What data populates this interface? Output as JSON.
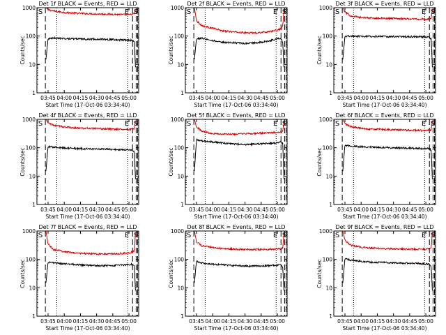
{
  "window": {
    "title": ""
  },
  "layout": {
    "rows": 3,
    "cols": 3
  },
  "colors": {
    "events": "#000000",
    "lld": "#d40000",
    "axes": "#000000",
    "background": "#ffffff"
  },
  "chart_data": [
    {
      "type": "line",
      "title": "Det 1f BLACK = Events, RED = LLD",
      "xlabel": "Start Time (17-Oct-06 03:34:40)",
      "ylabel": "Counts/sec",
      "yscale": "log",
      "ylim": [
        1,
        1000
      ],
      "xlim": [
        "03:34:40",
        "05:09:00"
      ],
      "x_ticks": [
        "03:45",
        "04:00",
        "04:15",
        "04:30",
        "04:45",
        "05:00"
      ],
      "y_ticks": [
        "1",
        "10",
        "100",
        "1000"
      ],
      "annotations": [
        "S",
        "E",
        "S"
      ],
      "dashed_lines": [
        "03:42:30",
        "05:03:20",
        "05:06:40",
        "05:08:00"
      ],
      "dotted_lines": [
        "03:53:00",
        "04:58:50"
      ],
      "series": [
        {
          "name": "LLD",
          "color": "#d40000",
          "x": [
            "03:43:00",
            "03:45:00",
            "03:50:00",
            "04:00:00",
            "04:10:00",
            "04:20:00",
            "04:30:00",
            "04:40:00",
            "04:50:00",
            "05:00:00",
            "05:03:00",
            "05:05:00",
            "05:06:00"
          ],
          "y": [
            1000,
            850,
            760,
            680,
            640,
            620,
            600,
            590,
            580,
            560,
            590,
            620,
            900
          ]
        },
        {
          "name": "Events",
          "color": "#000000",
          "x": [
            "03:43:00",
            "03:45:00",
            "03:50:00",
            "04:00:00",
            "04:10:00",
            "04:20:00",
            "04:30:00",
            "04:40:00",
            "04:50:00",
            "05:00:00",
            "05:03:00",
            "05:05:00",
            "05:06:00"
          ],
          "y": [
            15,
            80,
            85,
            82,
            80,
            78,
            78,
            76,
            74,
            72,
            72,
            60,
            8
          ]
        }
      ]
    },
    {
      "type": "line",
      "title": "Det 2f BLACK = Events, RED = LLD",
      "xlabel": "Start Time (17-Oct-06 03:34:40)",
      "ylabel": "Counts/sec",
      "yscale": "log",
      "ylim": [
        1,
        1000
      ],
      "xlim": [
        "03:34:40",
        "05:09:00"
      ],
      "x_ticks": [
        "03:45",
        "04:00",
        "04:15",
        "04:30",
        "04:45",
        "05:00"
      ],
      "y_ticks": [
        "1",
        "10",
        "100",
        "1000"
      ],
      "annotations": [
        "S",
        "E",
        "S"
      ],
      "dashed_lines": [
        "03:42:30",
        "05:03:20",
        "05:06:40",
        "05:08:00"
      ],
      "dotted_lines": [
        "03:53:00",
        "04:58:50"
      ],
      "series": [
        {
          "name": "LLD",
          "color": "#d40000",
          "x": [
            "03:43:00",
            "03:45:00",
            "03:50:00",
            "04:00:00",
            "04:10:00",
            "04:20:00",
            "04:30:00",
            "04:40:00",
            "04:50:00",
            "05:00:00",
            "05:03:00",
            "05:05:00",
            "05:06:00"
          ],
          "y": [
            1000,
            350,
            230,
            190,
            150,
            140,
            130,
            130,
            140,
            160,
            180,
            220,
            900
          ]
        },
        {
          "name": "Events",
          "color": "#000000",
          "x": [
            "03:43:00",
            "03:45:00",
            "03:50:00",
            "04:00:00",
            "04:10:00",
            "04:20:00",
            "04:30:00",
            "04:40:00",
            "04:50:00",
            "05:00:00",
            "05:03:00",
            "05:05:00",
            "05:06:00"
          ],
          "y": [
            15,
            80,
            85,
            70,
            60,
            58,
            55,
            58,
            65,
            80,
            85,
            60,
            8
          ]
        }
      ]
    },
    {
      "type": "line",
      "title": "Det 3f BLACK = Events, RED = LLD",
      "xlabel": "Start Time (17-Oct-06 03:34:40)",
      "ylabel": "Counts/sec",
      "yscale": "log",
      "ylim": [
        1,
        1000
      ],
      "xlim": [
        "03:34:40",
        "05:09:00"
      ],
      "x_ticks": [
        "03:45",
        "04:00",
        "04:15",
        "04:30",
        "04:45",
        "05:00"
      ],
      "y_ticks": [
        "1",
        "10",
        "100",
        "1000"
      ],
      "annotations": [
        "S",
        "E",
        "S"
      ],
      "dashed_lines": [
        "03:42:30",
        "05:03:20",
        "05:06:40",
        "05:08:00"
      ],
      "dotted_lines": [
        "03:53:00",
        "04:58:50"
      ],
      "series": [
        {
          "name": "LLD",
          "color": "#d40000",
          "x": [
            "03:43:00",
            "03:45:00",
            "03:50:00",
            "04:00:00",
            "04:10:00",
            "04:20:00",
            "04:30:00",
            "04:40:00",
            "04:50:00",
            "05:00:00",
            "05:03:00",
            "05:05:00",
            "05:06:00"
          ],
          "y": [
            1000,
            700,
            520,
            450,
            430,
            420,
            420,
            410,
            400,
            390,
            400,
            420,
            900
          ]
        },
        {
          "name": "Events",
          "color": "#000000",
          "x": [
            "03:43:00",
            "03:45:00",
            "03:50:00",
            "04:00:00",
            "04:10:00",
            "04:20:00",
            "04:30:00",
            "04:40:00",
            "04:50:00",
            "05:00:00",
            "05:03:00",
            "05:05:00",
            "05:06:00"
          ],
          "y": [
            15,
            95,
            100,
            98,
            97,
            96,
            96,
            95,
            95,
            93,
            92,
            80,
            8
          ]
        }
      ]
    },
    {
      "type": "line",
      "title": "Det 4f BLACK = Events, RED = LLD",
      "xlabel": "Start Time (17-Oct-06 03:34:40)",
      "ylabel": "Counts/sec",
      "yscale": "log",
      "ylim": [
        1,
        1000
      ],
      "xlim": [
        "03:34:40",
        "05:09:00"
      ],
      "x_ticks": [
        "03:45",
        "04:00",
        "04:15",
        "04:30",
        "04:45",
        "05:00"
      ],
      "y_ticks": [
        "1",
        "10",
        "100",
        "1000"
      ],
      "annotations": [
        "S",
        "E",
        "S"
      ],
      "dashed_lines": [
        "03:42:30",
        "05:03:20",
        "05:06:40",
        "05:08:00"
      ],
      "dotted_lines": [
        "03:53:00",
        "04:58:50"
      ],
      "series": [
        {
          "name": "LLD",
          "color": "#d40000",
          "x": [
            "03:43:00",
            "03:45:00",
            "03:50:00",
            "04:00:00",
            "04:10:00",
            "04:20:00",
            "04:30:00",
            "04:40:00",
            "04:50:00",
            "05:00:00",
            "05:03:00",
            "05:05:00",
            "05:06:00"
          ],
          "y": [
            1000,
            750,
            620,
            540,
            500,
            480,
            470,
            460,
            450,
            440,
            460,
            480,
            900
          ]
        },
        {
          "name": "Events",
          "color": "#000000",
          "x": [
            "03:43:00",
            "03:45:00",
            "03:50:00",
            "04:00:00",
            "04:10:00",
            "04:20:00",
            "04:30:00",
            "04:40:00",
            "04:50:00",
            "05:00:00",
            "05:03:00",
            "05:05:00",
            "05:06:00"
          ],
          "y": [
            15,
            110,
            105,
            98,
            94,
            92,
            90,
            88,
            86,
            84,
            84,
            70,
            8
          ]
        }
      ]
    },
    {
      "type": "line",
      "title": "Det 5f BLACK = Events, RED = LLD",
      "xlabel": "Start Time (17-Oct-06 03:34:40)",
      "ylabel": "Counts/sec",
      "yscale": "log",
      "ylim": [
        1,
        1000
      ],
      "xlim": [
        "03:34:40",
        "05:09:00"
      ],
      "x_ticks": [
        "03:45",
        "04:00",
        "04:15",
        "04:30",
        "04:45",
        "05:00"
      ],
      "y_ticks": [
        "1",
        "10",
        "100",
        "1000"
      ],
      "annotations": [
        "S",
        "E",
        "S"
      ],
      "dashed_lines": [
        "03:42:30",
        "05:03:20",
        "05:06:40",
        "05:08:00"
      ],
      "dotted_lines": [
        "03:53:00",
        "04:58:50"
      ],
      "series": [
        {
          "name": "LLD",
          "color": "#d40000",
          "x": [
            "03:43:00",
            "03:45:00",
            "03:50:00",
            "04:00:00",
            "04:10:00",
            "04:20:00",
            "04:30:00",
            "04:40:00",
            "04:50:00",
            "05:00:00",
            "05:03:00",
            "05:05:00",
            "05:06:00"
          ],
          "y": [
            1000,
            550,
            380,
            320,
            300,
            300,
            310,
            320,
            330,
            350,
            360,
            380,
            900
          ]
        },
        {
          "name": "Events",
          "color": "#000000",
          "x": [
            "03:43:00",
            "03:45:00",
            "03:50:00",
            "04:00:00",
            "04:10:00",
            "04:20:00",
            "04:30:00",
            "04:40:00",
            "04:50:00",
            "05:00:00",
            "05:03:00",
            "05:05:00",
            "05:06:00"
          ],
          "y": [
            15,
            190,
            175,
            160,
            145,
            135,
            130,
            135,
            140,
            150,
            160,
            140,
            8
          ]
        }
      ]
    },
    {
      "type": "line",
      "title": "Det 6f BLACK = Events, RED = LLD",
      "xlabel": "Start Time (17-Oct-06 03:34:40)",
      "ylabel": "Counts/sec",
      "yscale": "log",
      "ylim": [
        1,
        1000
      ],
      "xlim": [
        "03:34:40",
        "05:09:00"
      ],
      "x_ticks": [
        "03:45",
        "04:00",
        "04:15",
        "04:30",
        "04:45",
        "05:00"
      ],
      "y_ticks": [
        "1",
        "10",
        "100",
        "1000"
      ],
      "annotations": [
        "S",
        "E",
        "S"
      ],
      "dashed_lines": [
        "03:42:30",
        "05:03:20",
        "05:06:40",
        "05:08:00"
      ],
      "dotted_lines": [
        "03:53:00",
        "04:58:50"
      ],
      "series": [
        {
          "name": "LLD",
          "color": "#d40000",
          "x": [
            "03:43:00",
            "03:45:00",
            "03:50:00",
            "04:00:00",
            "04:10:00",
            "04:20:00",
            "04:30:00",
            "04:40:00",
            "04:50:00",
            "05:00:00",
            "05:03:00",
            "05:05:00",
            "05:06:00"
          ],
          "y": [
            1000,
            700,
            560,
            480,
            450,
            440,
            430,
            420,
            410,
            400,
            420,
            440,
            900
          ]
        },
        {
          "name": "Events",
          "color": "#000000",
          "x": [
            "03:43:00",
            "03:45:00",
            "03:50:00",
            "04:00:00",
            "04:10:00",
            "04:20:00",
            "04:30:00",
            "04:40:00",
            "04:50:00",
            "05:00:00",
            "05:03:00",
            "05:05:00",
            "05:06:00"
          ],
          "y": [
            15,
            120,
            115,
            108,
            104,
            102,
            100,
            98,
            96,
            94,
            94,
            80,
            8
          ]
        }
      ]
    },
    {
      "type": "line",
      "title": "Det 7f BLACK = Events, RED = LLD",
      "xlabel": "Start Time (17-Oct-06 03:34:40)",
      "ylabel": "Counts/sec",
      "yscale": "log",
      "ylim": [
        1,
        1000
      ],
      "xlim": [
        "03:34:40",
        "05:09:00"
      ],
      "x_ticks": [
        "03:45",
        "04:00",
        "04:15",
        "04:30",
        "04:45",
        "05:00"
      ],
      "y_ticks": [
        "1",
        "10",
        "100",
        "1000"
      ],
      "annotations": [
        "S",
        "E",
        "S"
      ],
      "dashed_lines": [
        "03:42:30",
        "05:03:20",
        "05:06:40",
        "05:08:00"
      ],
      "dotted_lines": [
        "03:53:00",
        "04:58:50"
      ],
      "series": [
        {
          "name": "LLD",
          "color": "#d40000",
          "x": [
            "03:43:00",
            "03:45:00",
            "03:50:00",
            "04:00:00",
            "04:10:00",
            "04:20:00",
            "04:30:00",
            "04:40:00",
            "04:50:00",
            "05:00:00",
            "05:03:00",
            "05:05:00",
            "05:06:00"
          ],
          "y": [
            1000,
            350,
            220,
            190,
            170,
            160,
            155,
            155,
            160,
            170,
            180,
            200,
            900
          ]
        },
        {
          "name": "Events",
          "color": "#000000",
          "x": [
            "03:43:00",
            "03:45:00",
            "03:50:00",
            "04:00:00",
            "04:10:00",
            "04:20:00",
            "04:30:00",
            "04:40:00",
            "04:50:00",
            "05:00:00",
            "05:03:00",
            "05:05:00",
            "05:06:00"
          ],
          "y": [
            15,
            80,
            75,
            70,
            66,
            62,
            60,
            60,
            62,
            65,
            68,
            55,
            8
          ]
        }
      ]
    },
    {
      "type": "line",
      "title": "Det 8f BLACK = Events, RED = LLD",
      "xlabel": "Start Time (17-Oct-06 03:34:40)",
      "ylabel": "Counts/sec",
      "yscale": "log",
      "ylim": [
        1,
        1000
      ],
      "xlim": [
        "03:34:40",
        "05:09:00"
      ],
      "x_ticks": [
        "03:45",
        "04:00",
        "04:15",
        "04:30",
        "04:45",
        "05:00"
      ],
      "y_ticks": [
        "1",
        "10",
        "100",
        "1000"
      ],
      "annotations": [
        "S",
        "E",
        "S"
      ],
      "dashed_lines": [
        "03:42:30",
        "05:03:20",
        "05:06:40",
        "05:08:00"
      ],
      "dotted_lines": [
        "03:53:00",
        "04:58:50"
      ],
      "series": [
        {
          "name": "LLD",
          "color": "#d40000",
          "x": [
            "03:43:00",
            "03:45:00",
            "03:50:00",
            "04:00:00",
            "04:10:00",
            "04:20:00",
            "04:30:00",
            "04:40:00",
            "04:50:00",
            "05:00:00",
            "05:03:00",
            "05:05:00",
            "05:06:00"
          ],
          "y": [
            1000,
            420,
            300,
            260,
            240,
            230,
            225,
            225,
            225,
            230,
            235,
            250,
            900
          ]
        },
        {
          "name": "Events",
          "color": "#000000",
          "x": [
            "03:43:00",
            "03:45:00",
            "03:50:00",
            "04:00:00",
            "04:10:00",
            "04:20:00",
            "04:30:00",
            "04:40:00",
            "04:50:00",
            "05:00:00",
            "05:03:00",
            "05:05:00",
            "05:06:00"
          ],
          "y": [
            15,
            85,
            75,
            68,
            64,
            60,
            58,
            58,
            60,
            62,
            64,
            52,
            8
          ]
        }
      ]
    },
    {
      "type": "line",
      "title": "Det 9f BLACK = Events, RED = LLD",
      "xlabel": "Start Time (17-Oct-06 03:34:40)",
      "ylabel": "Counts/sec",
      "yscale": "log",
      "ylim": [
        1,
        1000
      ],
      "xlim": [
        "03:34:40",
        "05:09:00"
      ],
      "x_ticks": [
        "03:45",
        "04:00",
        "04:15",
        "04:30",
        "04:45",
        "05:00"
      ],
      "y_ticks": [
        "1",
        "10",
        "100",
        "1000"
      ],
      "annotations": [
        "S",
        "E",
        "S"
      ],
      "dashed_lines": [
        "03:42:30",
        "05:03:20",
        "05:06:40",
        "05:08:00"
      ],
      "dotted_lines": [
        "03:53:00",
        "04:58:50"
      ],
      "series": [
        {
          "name": "LLD",
          "color": "#d40000",
          "x": [
            "03:43:00",
            "03:45:00",
            "03:50:00",
            "04:00:00",
            "04:10:00",
            "04:20:00",
            "04:30:00",
            "04:40:00",
            "04:50:00",
            "05:00:00",
            "05:03:00",
            "05:05:00",
            "05:06:00"
          ],
          "y": [
            1000,
            480,
            320,
            270,
            250,
            240,
            235,
            230,
            230,
            230,
            235,
            250,
            900
          ]
        },
        {
          "name": "Events",
          "color": "#000000",
          "x": [
            "03:43:00",
            "03:45:00",
            "03:50:00",
            "04:00:00",
            "04:10:00",
            "04:20:00",
            "04:30:00",
            "04:40:00",
            "04:50:00",
            "05:00:00",
            "05:03:00",
            "05:05:00",
            "05:06:00"
          ],
          "y": [
            15,
            105,
            95,
            85,
            80,
            78,
            76,
            74,
            72,
            70,
            70,
            58,
            8
          ]
        }
      ]
    }
  ]
}
